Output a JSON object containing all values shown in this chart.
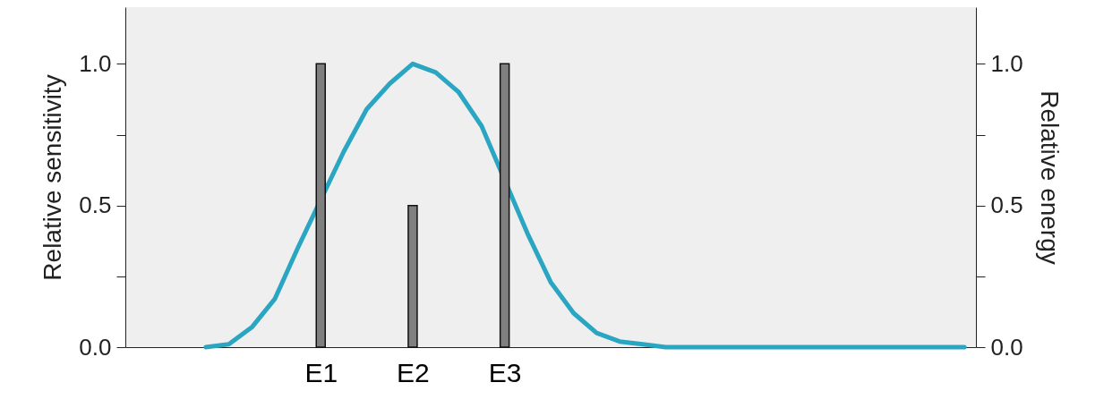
{
  "chart_data": {
    "type": "line",
    "ylabel": "Relative sensitivity",
    "y2label": "Relative energy",
    "categories": [
      null,
      null,
      null,
      null,
      null,
      null,
      null,
      null,
      "E1",
      null,
      null,
      null,
      "E2",
      null,
      null,
      null,
      "E3",
      null,
      null,
      null,
      null,
      null,
      null,
      null,
      null,
      null,
      null,
      null,
      null,
      null,
      null,
      null,
      null,
      null,
      null,
      null,
      null
    ],
    "ylim": [
      0,
      1.2
    ],
    "yticks": [
      {
        "value": 0,
        "label": "0.0"
      },
      {
        "value": 0.25,
        "label": null
      },
      {
        "value": 0.5,
        "label": "0.5"
      },
      {
        "value": 0.75,
        "label": null
      },
      {
        "value": 1,
        "label": "1.0"
      }
    ],
    "y2lim": [
      0,
      1.2
    ],
    "y2ticks": [
      {
        "value": 0,
        "label": "0.0"
      },
      {
        "value": 0.25,
        "label": null
      },
      {
        "value": 0.5,
        "label": "0.5"
      },
      {
        "value": 0.75,
        "label": null
      },
      {
        "value": 1,
        "label": "1.0"
      }
    ],
    "series": [
      {
        "color": "#2aa5c2",
        "values": [
          null,
          null,
          null,
          0,
          0.01,
          0.07,
          0.17,
          0.35,
          null,
          0.69,
          0.84,
          0.93,
          1.0,
          0.97,
          0.9,
          0.78,
          null,
          0.4,
          0.23,
          0.12,
          0.05,
          0.02,
          0.01,
          0,
          0,
          0,
          0,
          0,
          0,
          0,
          0,
          0,
          0,
          0,
          0,
          0,
          0
        ]
      },
      {
        "type": "bar",
        "axis": "y2",
        "color": "#7f7f7f",
        "values": [
          null,
          null,
          null,
          null,
          null,
          null,
          null,
          null,
          1,
          null,
          null,
          null,
          0.5,
          null,
          null,
          null,
          1,
          null,
          null,
          null,
          null,
          null,
          null,
          null,
          null,
          null,
          null,
          null,
          null,
          null,
          null,
          null,
          null,
          null,
          null,
          null,
          null
        ]
      }
    ]
  }
}
